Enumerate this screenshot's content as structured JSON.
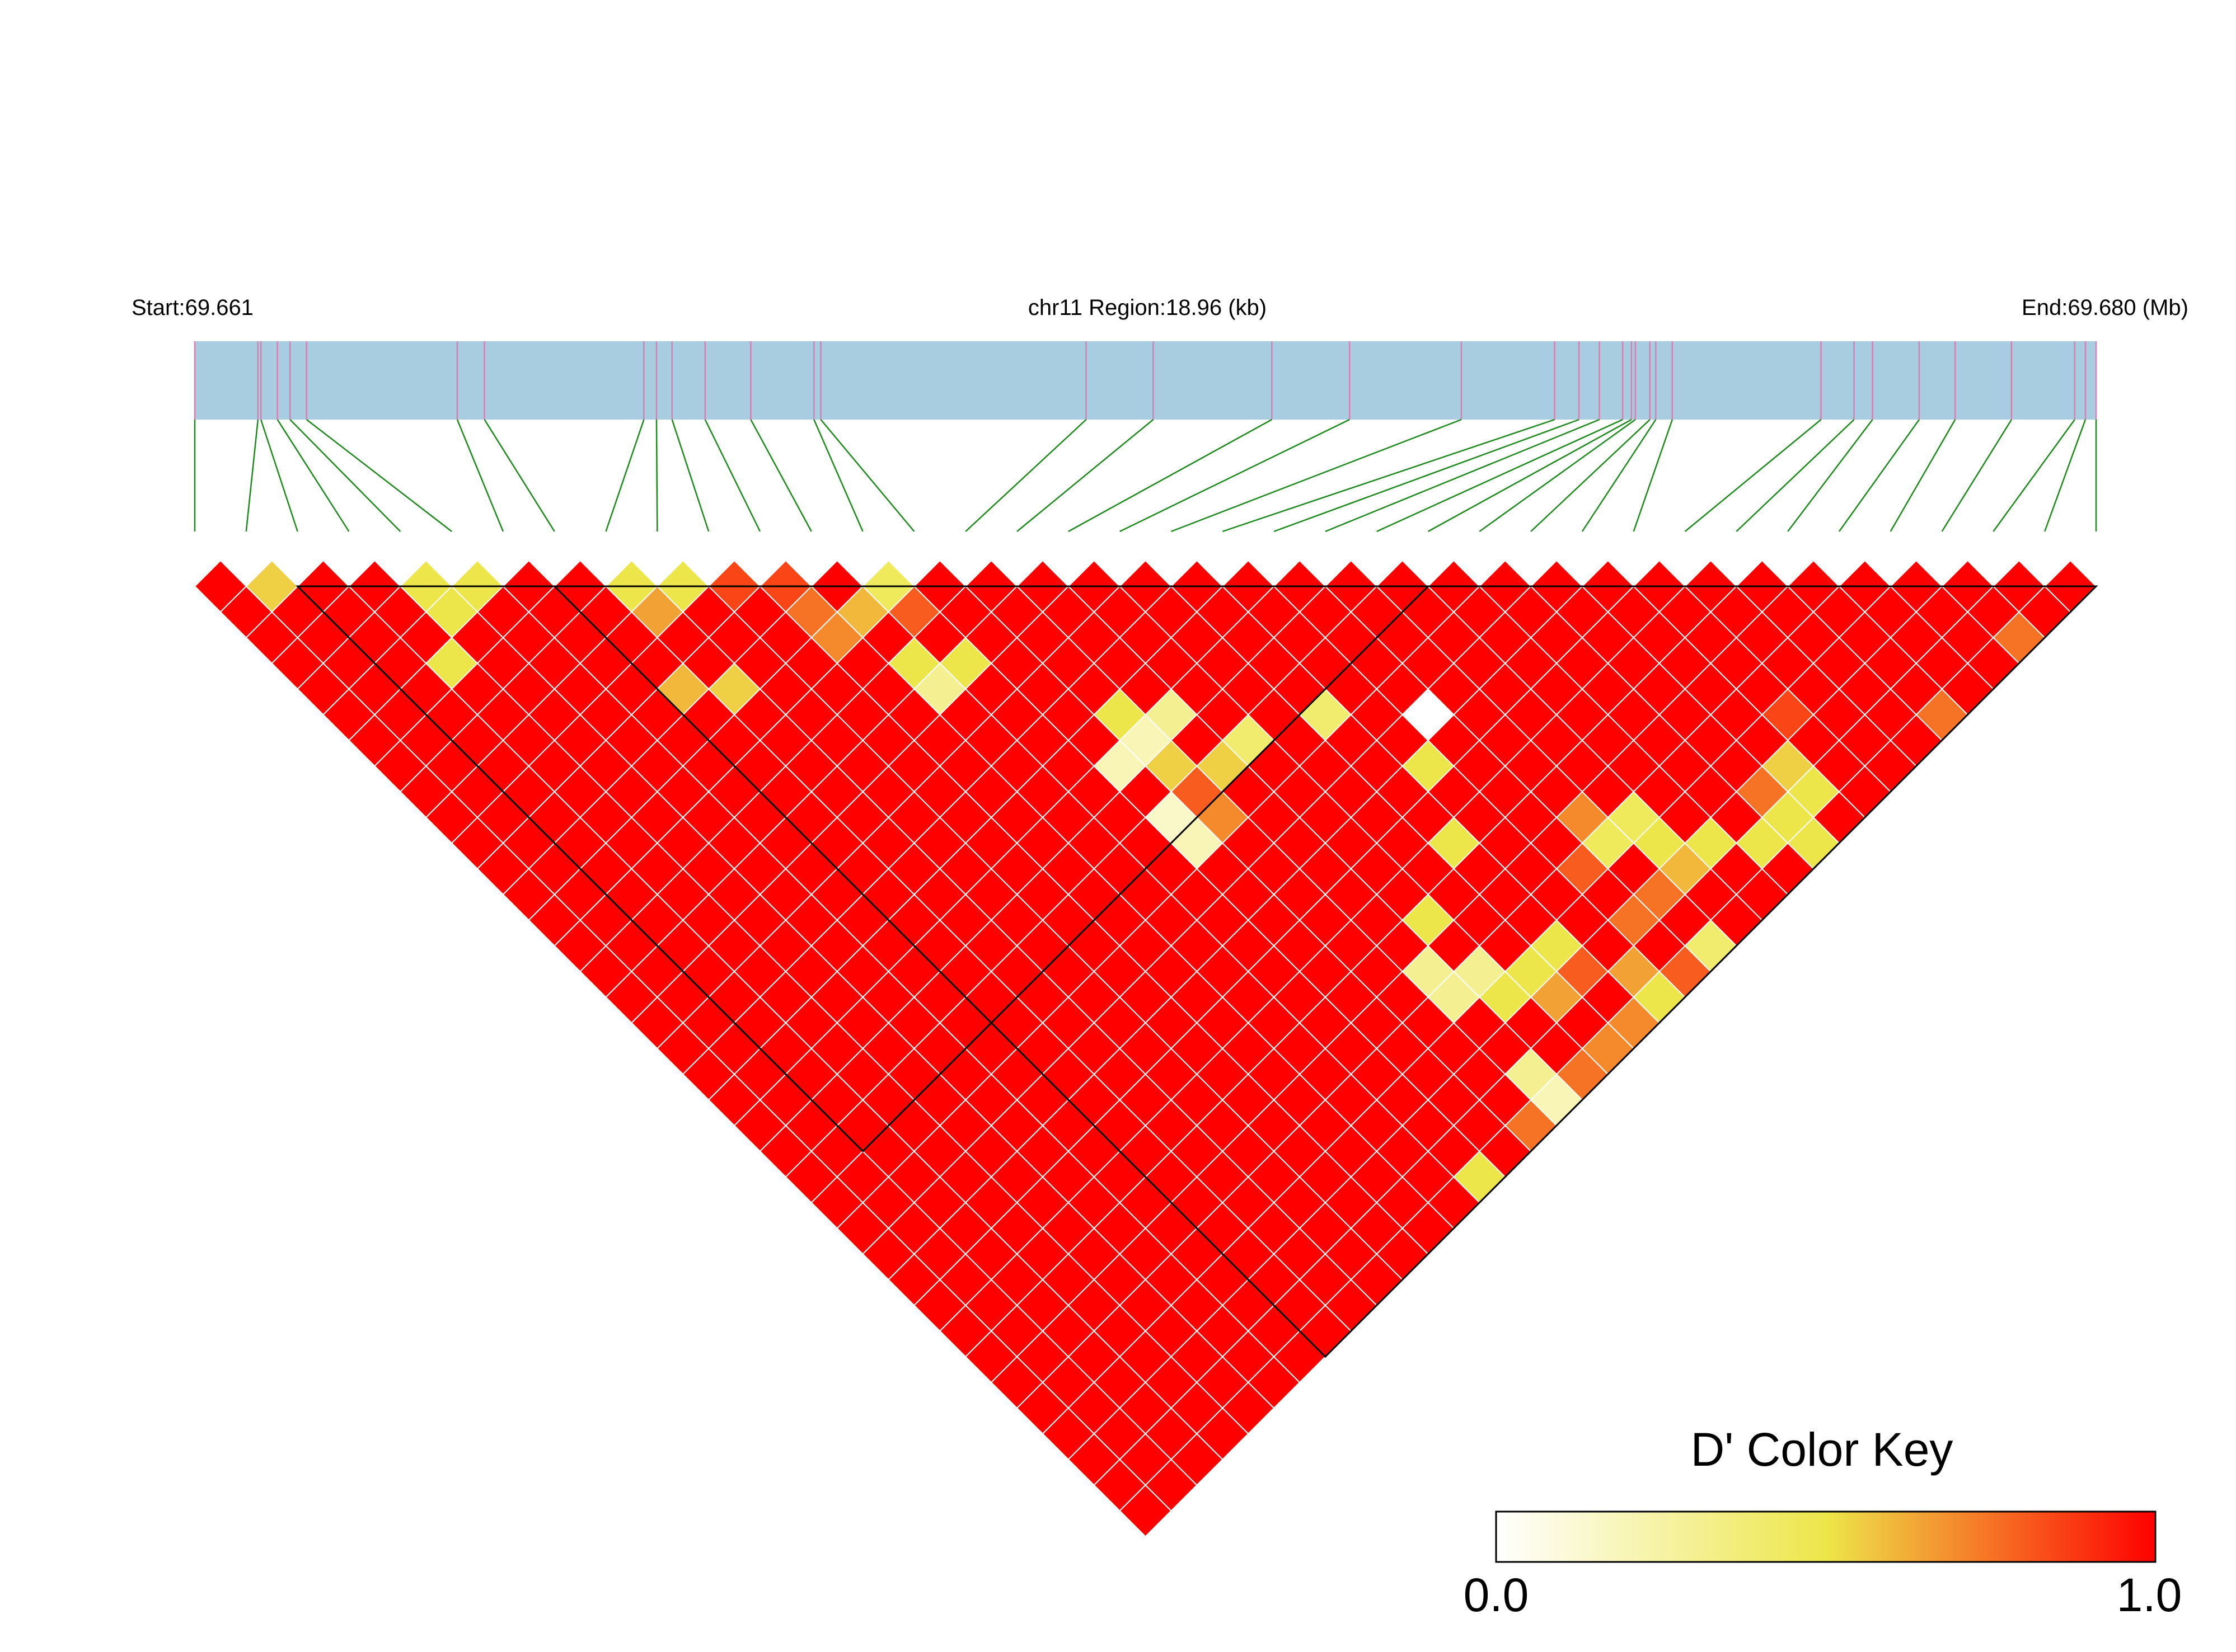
{
  "header": {
    "start_label": "Start:69.661",
    "region_label": "chr11 Region:18.96 (kb)",
    "end_label": "End:69.680 (Mb)"
  },
  "chart_data": {
    "type": "heatmap",
    "title": "",
    "chromosome": "chr11",
    "region_start_mb": 69.661,
    "region_end_mb": 69.68,
    "region_length_kb": 18.96,
    "snp_count": 38,
    "snp_positions_mb": [
      69.661,
      69.66165,
      69.66168,
      69.66185,
      69.66198,
      69.66215,
      69.6637,
      69.66398,
      69.66562,
      69.66575,
      69.66591,
      69.66625,
      69.66672,
      69.66737,
      69.66744,
      69.67017,
      69.67086,
      69.67208,
      69.67288,
      69.67403,
      69.67499,
      69.67524,
      69.67545,
      69.67569,
      69.67578,
      69.67582,
      69.67597,
      69.67603,
      69.6762,
      69.67773,
      69.67807,
      69.67826,
      69.67874,
      69.67911,
      69.67969,
      69.68034,
      69.68045,
      69.68056
    ],
    "value_name": "D'",
    "value_range": [
      0,
      1
    ],
    "default_value": 1.0,
    "low_pairs": [
      {
        "i": 1,
        "j": 2,
        "v": 0.55
      },
      {
        "i": 4,
        "j": 5,
        "v": 0.5
      },
      {
        "i": 4,
        "j": 6,
        "v": 0.5
      },
      {
        "i": 5,
        "j": 6,
        "v": 0.5
      },
      {
        "i": 8,
        "j": 9,
        "v": 0.5
      },
      {
        "i": 8,
        "j": 10,
        "v": 0.65
      },
      {
        "i": 9,
        "j": 10,
        "v": 0.5
      },
      {
        "i": 10,
        "j": 11,
        "v": 0.85
      },
      {
        "i": 13,
        "j": 14,
        "v": 0.45
      },
      {
        "i": 11,
        "j": 13,
        "v": 0.75
      },
      {
        "i": 11,
        "j": 14,
        "v": 0.7
      },
      {
        "i": 12,
        "j": 14,
        "v": 0.6
      },
      {
        "i": 13,
        "j": 15,
        "v": 0.8
      },
      {
        "i": 3,
        "j": 7,
        "v": 0.5
      },
      {
        "i": 12,
        "j": 16,
        "v": 0.5
      },
      {
        "i": 12,
        "j": 17,
        "v": 0.3
      },
      {
        "i": 13,
        "j": 17,
        "v": 0.5
      },
      {
        "i": 7,
        "j": 12,
        "v": 0.6
      },
      {
        "i": 8,
        "j": 13,
        "v": 0.55
      },
      {
        "i": 15,
        "j": 21,
        "v": 0.5
      },
      {
        "i": 15,
        "j": 22,
        "v": 0.2
      },
      {
        "i": 16,
        "j": 22,
        "v": 0.3
      },
      {
        "i": 14,
        "j": 22,
        "v": 0.2
      },
      {
        "i": 15,
        "j": 23,
        "v": 0.55
      },
      {
        "i": 15,
        "j": 24,
        "v": 0.8
      },
      {
        "i": 17,
        "j": 24,
        "v": 0.4
      },
      {
        "i": 14,
        "j": 24,
        "v": 0.15
      },
      {
        "i": 16,
        "j": 24,
        "v": 0.55
      },
      {
        "i": 14,
        "j": 25,
        "v": 0.2
      },
      {
        "i": 15,
        "j": 25,
        "v": 0.7
      },
      {
        "i": 19,
        "j": 25,
        "v": 0.4
      },
      {
        "i": 21,
        "j": 27,
        "v": 0.0
      },
      {
        "i": 20,
        "j": 28,
        "v": 0.5
      },
      {
        "i": 19,
        "j": 30,
        "v": 0.5
      },
      {
        "i": 17,
        "j": 31,
        "v": 0.5
      },
      {
        "i": 22,
        "j": 32,
        "v": 0.7
      },
      {
        "i": 21,
        "j": 33,
        "v": 0.8
      },
      {
        "i": 21,
        "j": 35,
        "v": 0.75
      },
      {
        "i": 22,
        "j": 35,
        "v": 0.75
      },
      {
        "i": 26,
        "j": 35,
        "v": 0.75
      },
      {
        "i": 28,
        "j": 34,
        "v": 0.85
      },
      {
        "i": 27,
        "j": 35,
        "v": 0.55
      },
      {
        "i": 34,
        "j": 37,
        "v": 0.75
      },
      {
        "i": 31,
        "j": 37,
        "v": 0.75
      },
      {
        "i": 17,
        "j": 34,
        "v": 0.5
      },
      {
        "i": 19,
        "j": 34,
        "v": 0.5
      },
      {
        "i": 18,
        "j": 34,
        "v": 0.5
      },
      {
        "i": 18,
        "j": 35,
        "v": 0.65
      },
      {
        "i": 19,
        "j": 35,
        "v": 0.8
      },
      {
        "i": 26,
        "j": 37,
        "v": 0.5
      },
      {
        "i": 23,
        "j": 34,
        "v": 0.5
      },
      {
        "i": 24,
        "j": 35,
        "v": 0.5
      },
      {
        "i": 23,
        "j": 35,
        "v": 0.6
      },
      {
        "i": 22,
        "j": 33,
        "v": 0.45
      },
      {
        "i": 23,
        "j": 33,
        "v": 0.45
      },
      {
        "i": 16,
        "j": 33,
        "v": 0.3
      },
      {
        "i": 17,
        "j": 33,
        "v": 0.3
      },
      {
        "i": 16,
        "j": 32,
        "v": 0.3
      },
      {
        "i": 26,
        "j": 36,
        "v": 0.5
      },
      {
        "i": 27,
        "j": 36,
        "v": 0.5
      },
      {
        "i": 25,
        "j": 36,
        "v": 0.5
      },
      {
        "i": 20,
        "j": 37,
        "v": 0.5
      },
      {
        "i": 22,
        "j": 37,
        "v": 0.4
      },
      {
        "i": 19,
        "j": 37,
        "v": 0.7
      },
      {
        "i": 20,
        "j": 36,
        "v": 0.65
      },
      {
        "i": 21,
        "j": 37,
        "v": 0.8
      },
      {
        "i": 16,
        "j": 37,
        "v": 0.2
      },
      {
        "i": 17,
        "j": 37,
        "v": 0.75
      },
      {
        "i": 18,
        "j": 37,
        "v": 0.7
      },
      {
        "i": 13,
        "j": 37,
        "v": 0.5
      },
      {
        "i": 15,
        "j": 37,
        "v": 0.75
      },
      {
        "i": 16,
        "j": 36,
        "v": 0.3
      },
      {
        "i": 11,
        "j": 12,
        "v": 0.85
      }
    ],
    "blocks": [
      {
        "start": 2,
        "end": 24
      },
      {
        "start": 7,
        "end": 37
      }
    ],
    "legend": {
      "title": "D' Color Key",
      "min_label": "0.0",
      "max_label": "1.0",
      "stops": [
        "#ffffff",
        "#ede64a",
        "#ff0000"
      ]
    },
    "colors": {
      "track": "#a8cce0",
      "snp_tick": "#d77fb3",
      "connector": "#1b8a1b"
    }
  }
}
